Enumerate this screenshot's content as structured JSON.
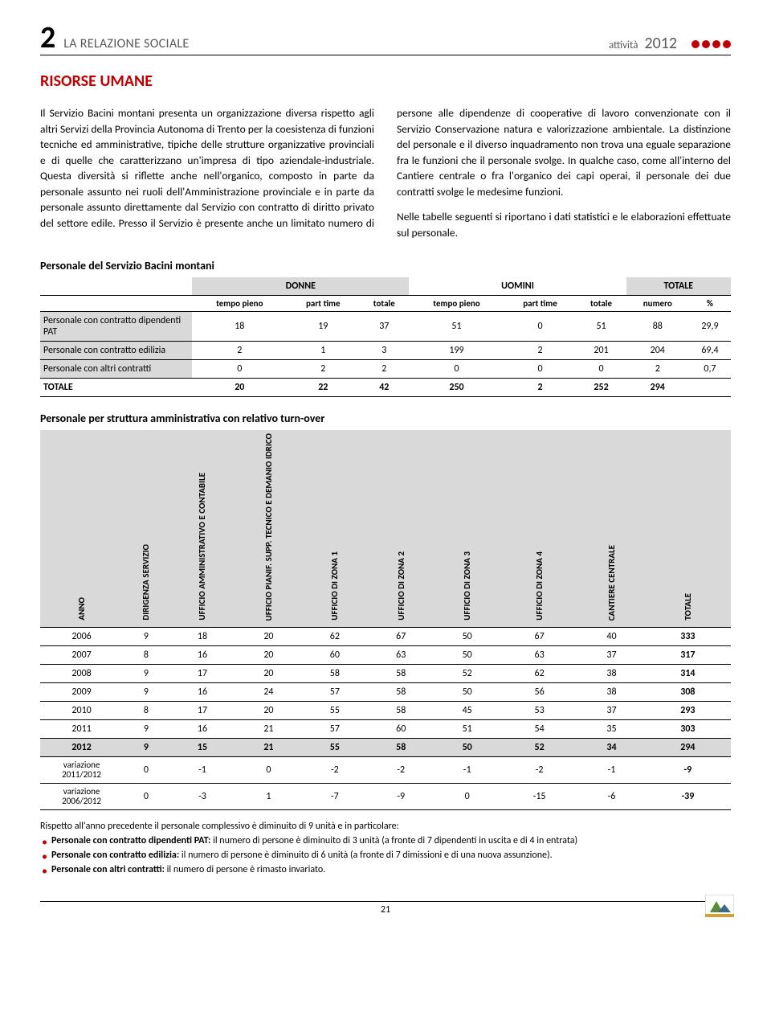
{
  "header": {
    "chapter_num": "2",
    "chapter_title": "LA RELAZIONE SOCIALE",
    "activity_label": "attività",
    "activity_year": "2012",
    "dot_colors": [
      "#c00000",
      "#c00000",
      "#c00000",
      "#c00000"
    ]
  },
  "section_title_color": "#c00000",
  "section_title": "RISORSE UMANE",
  "body_p1": "Il Servizio Bacini montani presenta un organizzazione diversa rispetto agli altri Servizi della Provincia Autonoma di Trento per la coesistenza di funzioni tecniche ed amministrative, tipiche delle strutture organizzative provinciali e di quelle che caratterizzano un'impresa di tipo aziendale-industriale. Questa diversità si riflette anche nell'organico, composto in parte da personale assunto nei ruoli dell'Amministrazione provinciale e in parte da personale assunto direttamente dal Servizio con contratto di diritto privato del settore edile. Presso il Servizio è presente anche un limitato numero di persone alle dipendenze di cooperative di lavoro convenzionate con il Servizio Conservazione natura e valorizzazione ambientale. La distinzione del personale e il diverso inquadramento non trova una eguale separazione fra le funzioni che il personale svolge. In qualche caso, come all'interno del Cantiere centrale o fra l'organico dei capi operai, il personale dei due contratti svolge le medesime funzioni.",
  "body_p2": "Nelle tabelle seguenti si riportano i dati statistici e le elaborazioni effettuate sul personale.",
  "table1": {
    "title": "Personale del Servizio Bacini montani",
    "groups": [
      "DONNE",
      "UOMINI",
      "TOTALE"
    ],
    "subheaders": [
      "tempo pieno",
      "part time",
      "totale",
      "tempo pieno",
      "part time",
      "totale",
      "numero",
      "%"
    ],
    "shade_bg": "#d9d9d9",
    "rows": [
      {
        "label": "Personale con contratto dipendenti PAT",
        "cells": [
          "18",
          "19",
          "37",
          "51",
          "0",
          "51",
          "88",
          "29,9"
        ]
      },
      {
        "label": "Personale con contratto edilizia",
        "cells": [
          "2",
          "1",
          "3",
          "199",
          "2",
          "201",
          "204",
          "69,4"
        ]
      },
      {
        "label": "Personale con altri contratti",
        "cells": [
          "0",
          "2",
          "2",
          "0",
          "0",
          "0",
          "2",
          "0,7"
        ]
      }
    ],
    "total": {
      "label": "TOTALE",
      "cells": [
        "20",
        "22",
        "42",
        "250",
        "2",
        "252",
        "294",
        ""
      ]
    }
  },
  "table2": {
    "title": "Personale per struttura amministrativa con relativo turn-over",
    "headers": [
      "ANNO",
      "DIRIGENZA SERVIZIO",
      "UFFICIO AMMINISTRATIVO E CONTABILE",
      "UFFICIO PIANIF. SUPP. TECNICO E DEMANIO IDRICO",
      "UFFICIO DI ZONA 1",
      "UFFICIO DI ZONA 2",
      "UFFICIO DI ZONA 3",
      "UFFICIO DI ZONA 4",
      "CANTIERE CENTRALE",
      "TOTALE"
    ],
    "rows": [
      [
        "2006",
        "9",
        "18",
        "20",
        "62",
        "67",
        "50",
        "67",
        "40",
        "333"
      ],
      [
        "2007",
        "8",
        "16",
        "20",
        "60",
        "63",
        "50",
        "63",
        "37",
        "317"
      ],
      [
        "2008",
        "9",
        "17",
        "20",
        "58",
        "58",
        "52",
        "62",
        "38",
        "314"
      ],
      [
        "2009",
        "9",
        "16",
        "24",
        "57",
        "58",
        "50",
        "56",
        "38",
        "308"
      ],
      [
        "2010",
        "8",
        "17",
        "20",
        "55",
        "58",
        "45",
        "53",
        "37",
        "293"
      ],
      [
        "2011",
        "9",
        "16",
        "21",
        "57",
        "60",
        "51",
        "54",
        "35",
        "303"
      ]
    ],
    "highlight_row": [
      "2012",
      "9",
      "15",
      "21",
      "55",
      "58",
      "50",
      "52",
      "34",
      "294"
    ],
    "var_rows": [
      [
        "variazione 2011/2012",
        "0",
        "-1",
        "0",
        "-2",
        "-2",
        "-1",
        "-2",
        "-1",
        "-9"
      ],
      [
        "variazione 2006/2012",
        "0",
        "-3",
        "1",
        "-7",
        "-9",
        "0",
        "-15",
        "-6",
        "-39"
      ]
    ]
  },
  "notes": {
    "intro": "Rispetto all'anno precedente il personale complessivo è diminuito di 9 unità e in particolare:",
    "bullets": [
      {
        "bold": "Personale con contratto dipendenti PAT:",
        "rest": " il numero di persone è diminuito di 3 unità (a fronte di 7 dipendenti in uscita e di 4 in entrata)"
      },
      {
        "bold": "Personale con contratto edilizia:",
        "rest": " il numero di persone è diminuito  di 6 unità (a fronte di 7 dimissioni  e di una nuova assunzione)."
      },
      {
        "bold": "Personale con altri contratti:",
        "rest": " il numero di persone è rimasto invariato."
      }
    ],
    "bullet_color": "#c00000"
  },
  "page_number": "21"
}
